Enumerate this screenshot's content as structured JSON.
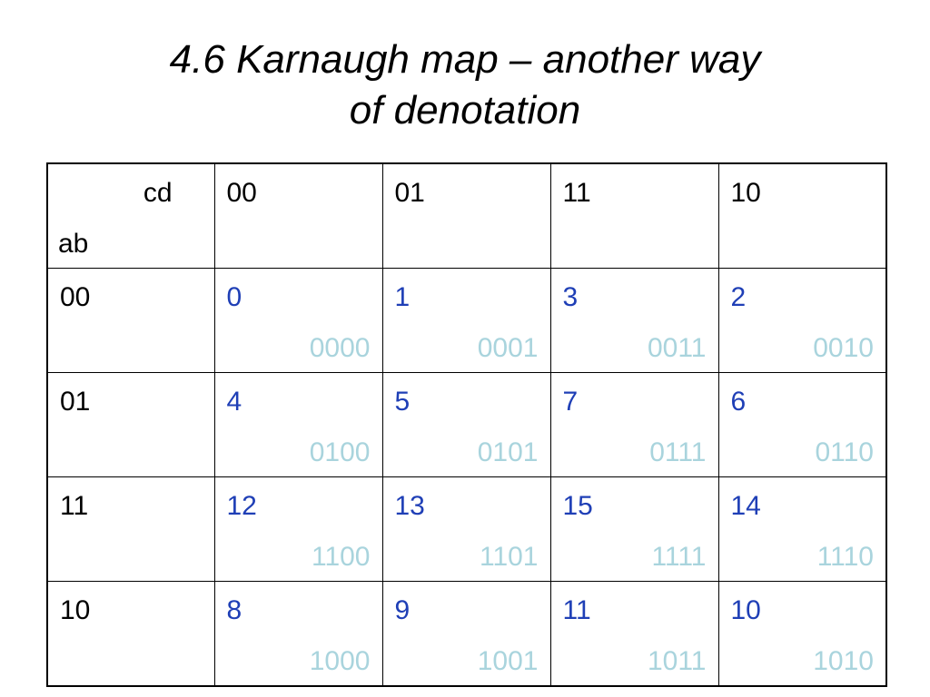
{
  "title": {
    "line1": "4.6 Karnaugh map – another way",
    "line2": "of denotation"
  },
  "kmap": {
    "corner_cd": "cd",
    "corner_ab": "ab",
    "col_headers": [
      "00",
      "01",
      "11",
      "10"
    ],
    "rows": [
      {
        "label": "00",
        "cells": [
          {
            "num": "0",
            "bin": "0000"
          },
          {
            "num": "1",
            "bin": "0001"
          },
          {
            "num": "3",
            "bin": "0011"
          },
          {
            "num": "2",
            "bin": "0010"
          }
        ]
      },
      {
        "label": "01",
        "cells": [
          {
            "num": "4",
            "bin": "0100"
          },
          {
            "num": "5",
            "bin": "0101"
          },
          {
            "num": "7",
            "bin": "0111"
          },
          {
            "num": "6",
            "bin": "0110"
          }
        ]
      },
      {
        "label": "11",
        "cells": [
          {
            "num": "12",
            "bin": "1100"
          },
          {
            "num": "13",
            "bin": "1101"
          },
          {
            "num": "15",
            "bin": "1111"
          },
          {
            "num": "14",
            "bin": "1110"
          }
        ]
      },
      {
        "label": "10",
        "cells": [
          {
            "num": "8",
            "bin": "1000"
          },
          {
            "num": "9",
            "bin": "1001"
          },
          {
            "num": "11",
            "bin": "1011"
          },
          {
            "num": "10",
            "bin": "1010"
          }
        ]
      }
    ],
    "colors": {
      "number": "#1f3fb6",
      "binary": "#a9d4dd"
    }
  }
}
